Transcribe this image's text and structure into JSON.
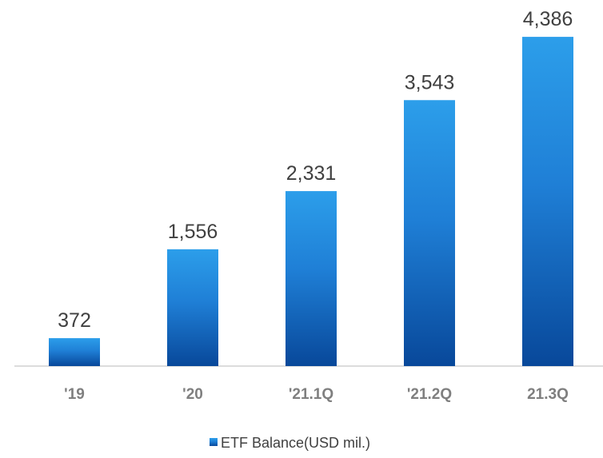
{
  "chart_data": {
    "type": "bar",
    "categories": [
      "'19",
      "'20",
      "'21.1Q",
      "'21.2Q",
      "21.3Q"
    ],
    "series": [
      {
        "name": "ETF Balance(USD mil.)",
        "color": "#1f7fd6",
        "values": [
          372,
          1556,
          2331,
          3543,
          4386
        ],
        "value_labels": [
          "372",
          "1,556",
          "2,331",
          "3,543",
          "4,386"
        ]
      }
    ],
    "ylim": [
      0,
      4600
    ],
    "legend": "bottom"
  }
}
